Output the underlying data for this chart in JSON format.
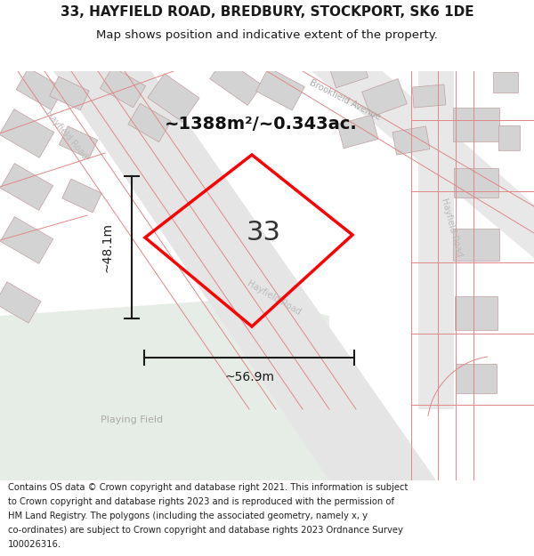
{
  "title_line1": "33, HAYFIELD ROAD, BREDBURY, STOCKPORT, SK6 1DE",
  "title_line2": "Map shows position and indicative extent of the property.",
  "footer_lines": [
    "Contains OS data © Crown copyright and database right 2021. This information is subject",
    "to Crown copyright and database rights 2023 and is reproduced with the permission of",
    "HM Land Registry. The polygons (including the associated geometry, namely x, y",
    "co-ordinates) are subject to Crown copyright and database rights 2023 Ordnance Survey",
    "100026316."
  ],
  "area_label": "~1388m²/~0.343ac.",
  "number_label": "33",
  "dim_width": "~56.9m",
  "dim_height": "~48.1m",
  "playing_field_label": "Playing Field",
  "brookfield_avenue_label": "Brookfield Avenue",
  "hayfield_road_label1": "Hayfield Road",
  "hayfield_road_label2": "Hayfield Road",
  "hayfield_road_label3": "Hayfield Road",
  "map_bg": "#efeeec",
  "playing_field_color": "#e6ede6",
  "plot_edge_color": "#ff0000",
  "dim_line_color": "#1a1a1a",
  "text_color": "#1a1a1a",
  "road_line_color": "#e08888",
  "building_fill": "#d3d3d3",
  "building_edge": "#c0a0a0"
}
